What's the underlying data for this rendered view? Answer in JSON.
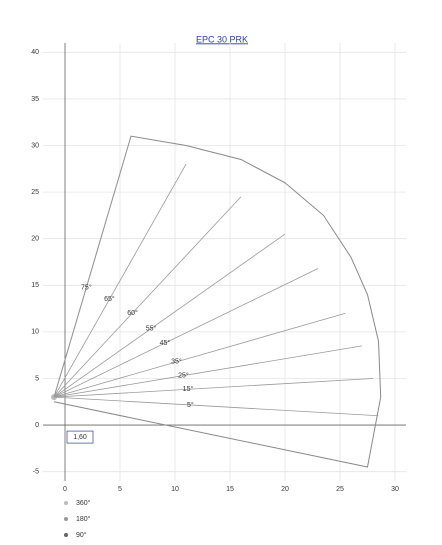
{
  "chart_data": {
    "type": "range",
    "title": "EPC 30 PRK",
    "xlim": [
      -2,
      31
    ],
    "ylim": [
      -6,
      41
    ],
    "xticks": [
      0,
      5,
      10,
      15,
      20,
      25,
      30
    ],
    "yticks": [
      -5,
      0,
      5,
      10,
      15,
      20,
      25,
      30,
      35,
      40
    ],
    "grid": true,
    "color": "#8a8a8a",
    "outline": {
      "x": [
        -1,
        6,
        11,
        16,
        20,
        23.5,
        26,
        27.5,
        28.5,
        28.7,
        27.5,
        -1
      ],
      "y": [
        3,
        31,
        30,
        28.5,
        26,
        22.5,
        18,
        14,
        9,
        3,
        -4.5,
        2.5
      ]
    },
    "pivot": [
      -1,
      3
    ],
    "angle_lines": [
      {
        "label": "75°",
        "x": 6,
        "y": 31
      },
      {
        "label": "65°",
        "x": 11,
        "y": 28
      },
      {
        "label": "60°",
        "x": 16,
        "y": 24.5
      },
      {
        "label": "55°",
        "x": 20,
        "y": 20.5
      },
      {
        "label": "45°",
        "x": 23,
        "y": 16.8
      },
      {
        "label": "35°",
        "x": 25.5,
        "y": 12
      },
      {
        "label": "25°",
        "x": 27,
        "y": 8.5
      },
      {
        "label": "15°",
        "x": 28,
        "y": 5
      },
      {
        "label": "5°",
        "x": 28.5,
        "y": 1
      }
    ],
    "dimension_label": "1,60",
    "legend": [
      "360°",
      "180°",
      "90°"
    ]
  }
}
